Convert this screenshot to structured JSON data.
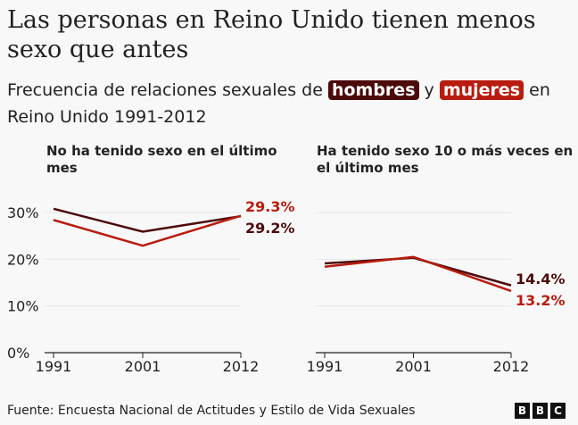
{
  "title": "Las personas en Reino Unido tienen menos sexo que antes",
  "subtitle": {
    "before": "Frecuencia de relaciones sexuales de ",
    "men": "hombres",
    "mid": " y ",
    "women": "mujeres",
    "after": " en Reino Unido 1991-2012"
  },
  "colors": {
    "men": "#4d0a0a",
    "women": "#b81c0f"
  },
  "footer": "Fuente: Encuesta Nacional de Actitudes y Estilo de Vida Sexuales",
  "logo": [
    "B",
    "B",
    "C"
  ],
  "chart_data": [
    {
      "type": "line",
      "title": "No ha tenido sexo en el último mes",
      "x": [
        "1991",
        "2001",
        "2012"
      ],
      "ylim": [
        0,
        30
      ],
      "yticks": [
        "0%",
        "10%",
        "20%",
        "30%"
      ],
      "series": [
        {
          "name": "hombres",
          "values": [
            30.8,
            25.9,
            29.2
          ],
          "label": "29.2%"
        },
        {
          "name": "mujeres",
          "values": [
            28.4,
            22.9,
            29.3
          ],
          "label": "29.3%"
        }
      ]
    },
    {
      "type": "line",
      "title": "Ha tenido sexo 10 o más veces en el último mes",
      "x": [
        "1991",
        "2001",
        "2012"
      ],
      "ylim": [
        0,
        30
      ],
      "series": [
        {
          "name": "hombres",
          "values": [
            19.1,
            20.3,
            14.4
          ],
          "label": "14.4%"
        },
        {
          "name": "mujeres",
          "values": [
            18.4,
            20.5,
            13.2
          ],
          "label": "13.2%"
        }
      ]
    }
  ]
}
